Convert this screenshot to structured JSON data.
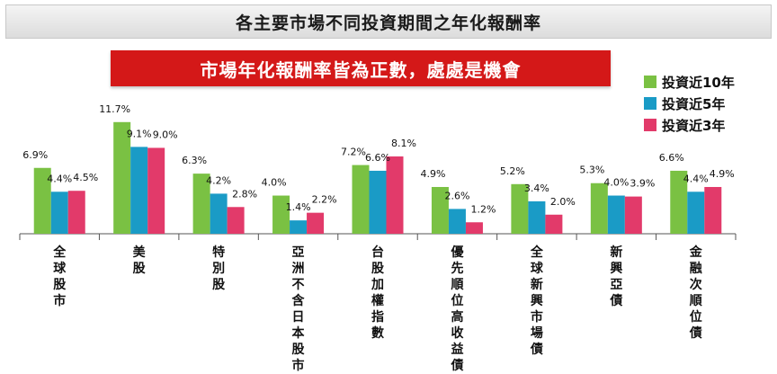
{
  "title": "各主要市場不同投資期間之年化報酬率",
  "banner": "市場年化報酬率皆為正數，處處是機會",
  "chart_data": {
    "type": "bar",
    "categories": [
      "全球股市",
      "美股",
      "特別股",
      "亞洲不含日本股市",
      "台股加權指數",
      "優先順位高收益債",
      "全球新興市場債",
      "新興亞債",
      "金融次順位債"
    ],
    "series": [
      {
        "name": "投資近10年",
        "color": "#7ac143",
        "values": [
          6.9,
          11.7,
          6.3,
          4.0,
          7.2,
          4.9,
          5.2,
          5.3,
          6.6
        ],
        "labels": [
          "6.9%",
          "11.7%",
          "6.3%",
          "4.0%",
          "7.2%",
          "4.9%",
          "5.2%",
          "5.3%",
          "6.6%"
        ]
      },
      {
        "name": "投資近5年",
        "color": "#1a9bc6",
        "values": [
          4.4,
          9.1,
          4.2,
          1.4,
          6.6,
          2.6,
          3.4,
          4.0,
          4.4
        ],
        "labels": [
          "4.4%",
          "9.1%",
          "4.2%",
          "1.4%",
          "6.6%",
          "2.6%",
          "3.4%",
          "4.0%",
          "4.4%"
        ]
      },
      {
        "name": "投資近3年",
        "color": "#e23a6a",
        "values": [
          4.5,
          9.0,
          2.8,
          2.2,
          8.1,
          1.2,
          2.0,
          3.9,
          4.9
        ],
        "labels": [
          "4.5%",
          "9.0%",
          "2.8%",
          "2.2%",
          "8.1%",
          "1.2%",
          "2.0%",
          "3.9%",
          "4.9%"
        ]
      }
    ],
    "ylim": [
      0,
      13
    ],
    "grid": false,
    "legend": "right"
  }
}
